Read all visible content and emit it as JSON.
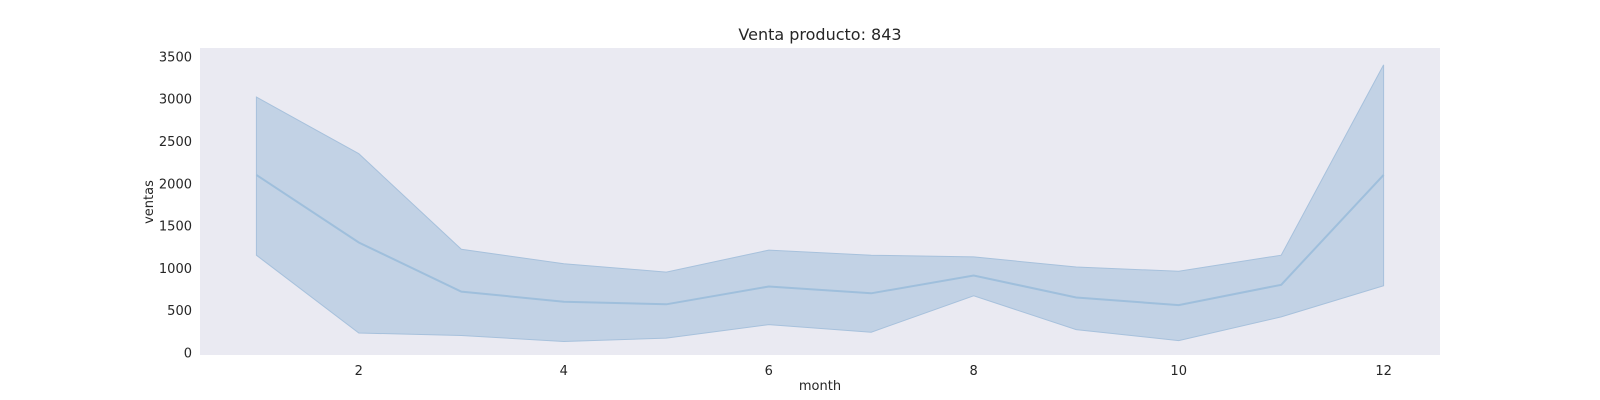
{
  "chart_data": {
    "type": "area",
    "title": "Venta producto: 843",
    "xlabel": "month",
    "ylabel": "ventas",
    "xlim": [
      0.45,
      12.55
    ],
    "ylim": [
      -30,
      3600
    ],
    "x_ticks": [
      2,
      4,
      6,
      8,
      10,
      12
    ],
    "y_ticks": [
      0,
      500,
      1000,
      1500,
      2000,
      2500,
      3000,
      3500
    ],
    "grid": false,
    "colors": {
      "plot_background": "#eaeaf2",
      "band_fill": "#a7c1dc",
      "line": "#9fbfdc"
    },
    "series": [
      {
        "x": [
          1,
          2,
          3,
          4,
          5,
          6,
          7,
          8,
          9,
          10,
          11,
          12
        ],
        "values": [
          2100,
          1300,
          720,
          600,
          570,
          780,
          700,
          910,
          650,
          560,
          800,
          2100
        ],
        "lower": [
          1150,
          230,
          200,
          130,
          170,
          330,
          240,
          670,
          270,
          140,
          420,
          790
        ],
        "upper": [
          3020,
          2350,
          1220,
          1050,
          950,
          1210,
          1150,
          1130,
          1010,
          960,
          1150,
          3400
        ]
      }
    ]
  }
}
